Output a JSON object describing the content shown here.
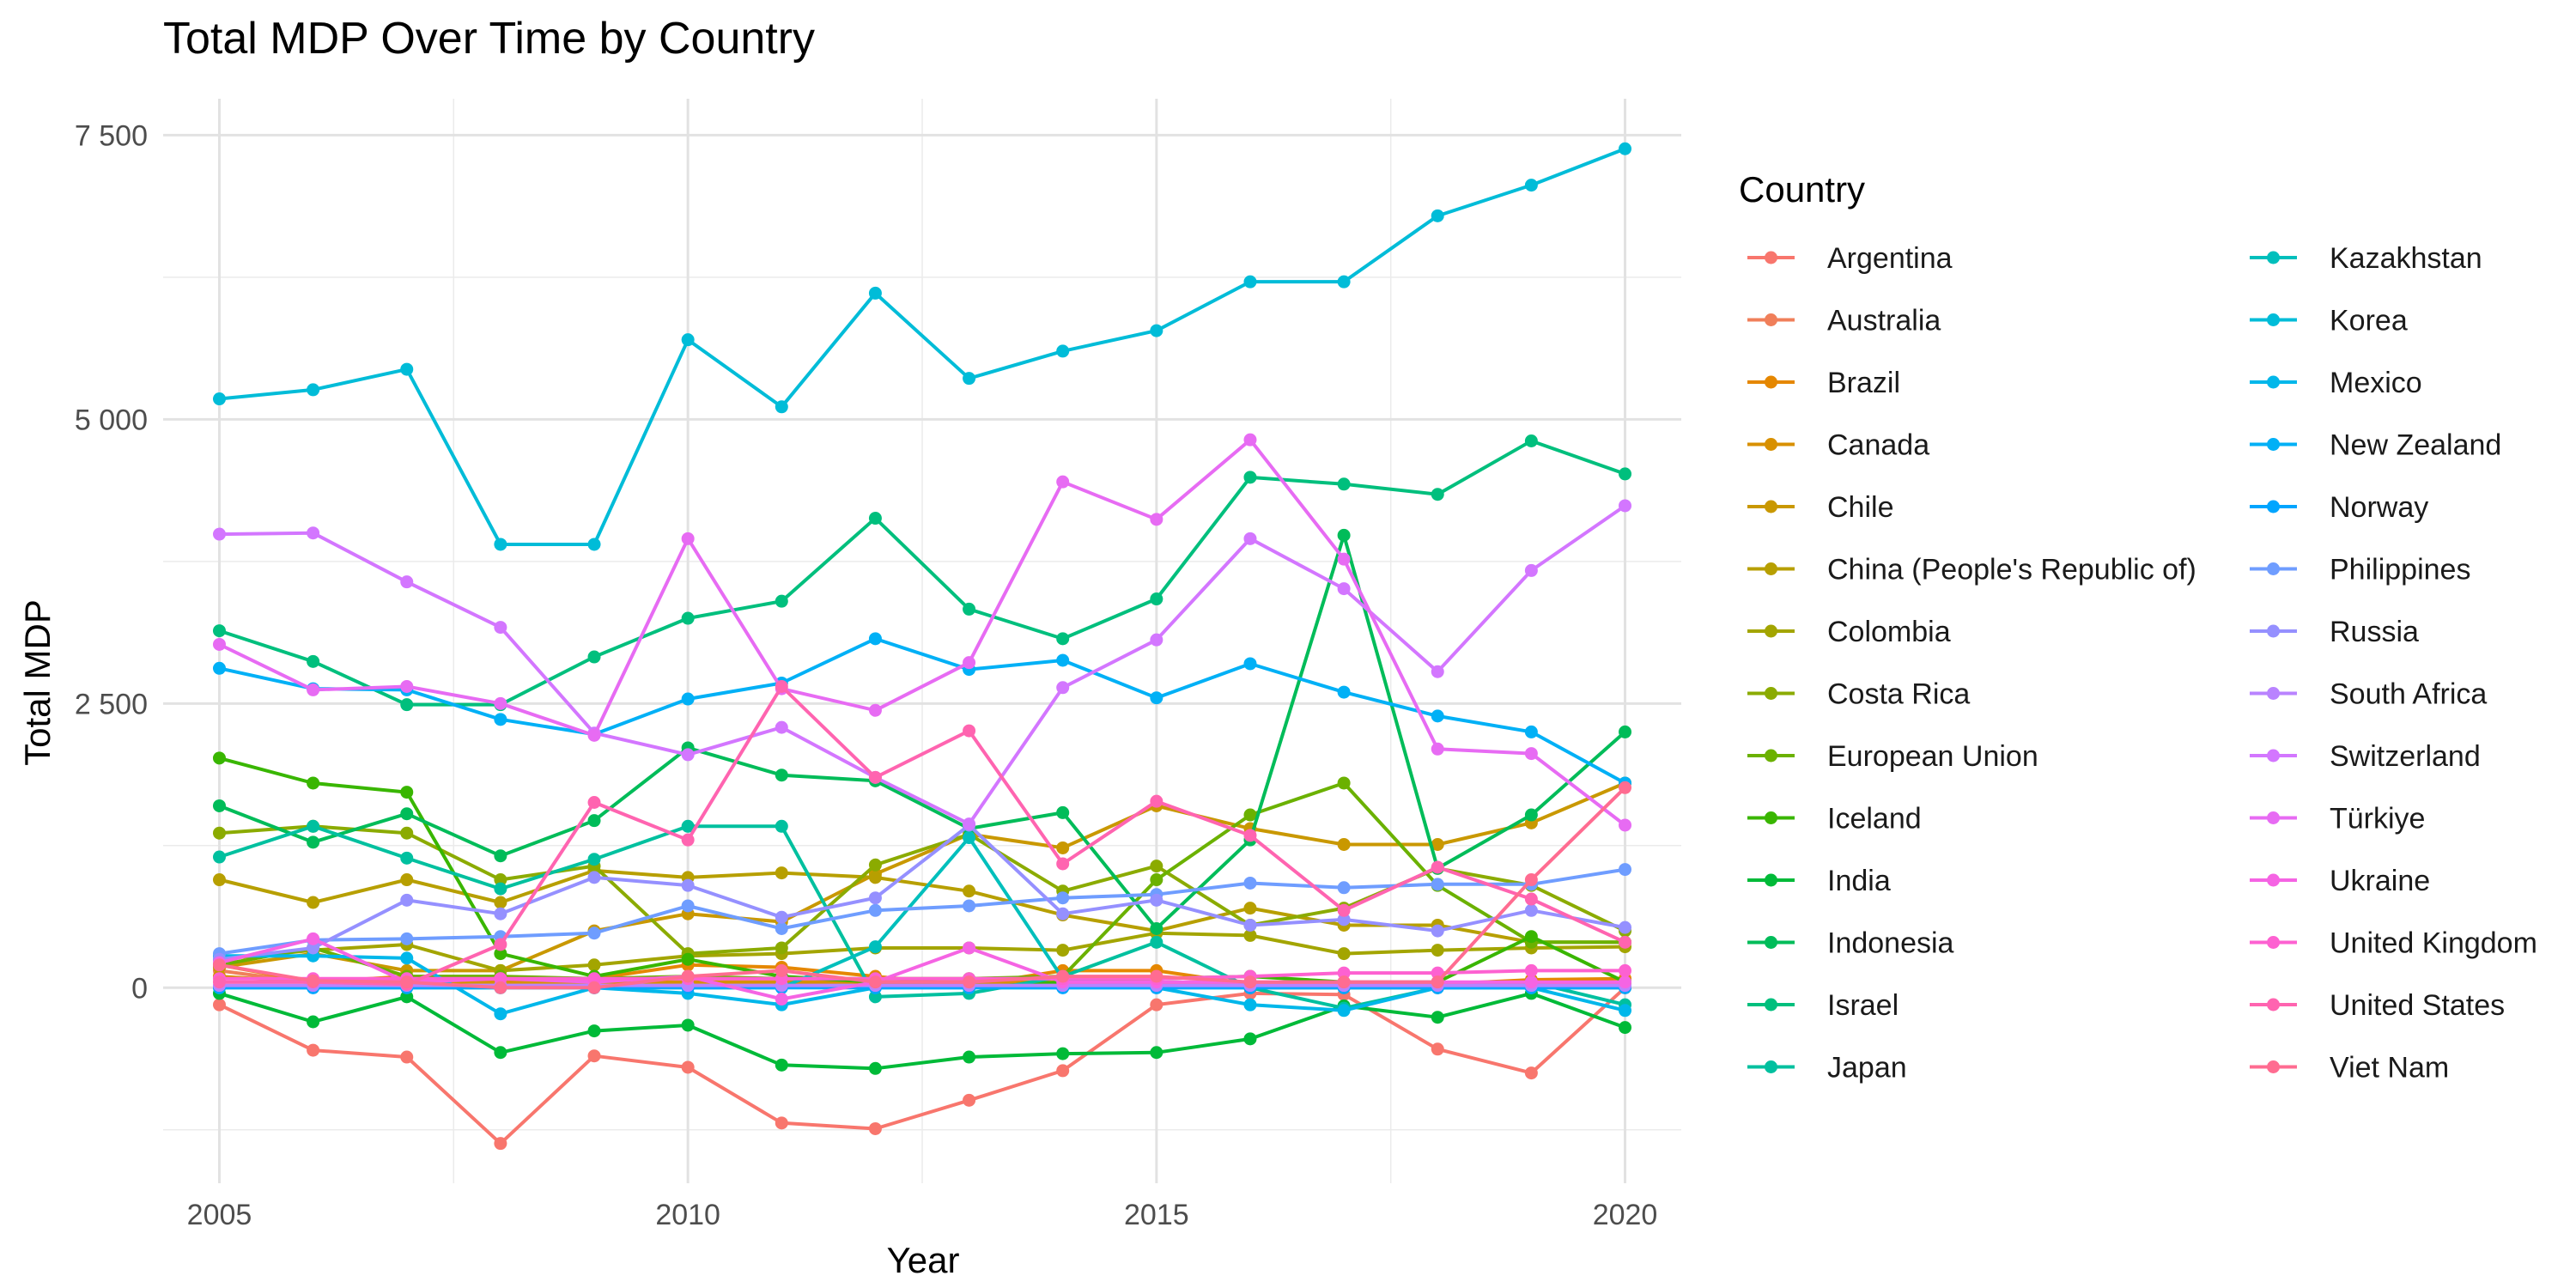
{
  "chart_data": {
    "type": "line",
    "title": "Total MDP Over Time by Country",
    "xlabel": "Year",
    "ylabel": "Total MDP",
    "xlim": [
      2004.4,
      2020.6
    ],
    "ylim": [
      -1720,
      7820
    ],
    "x_ticks": [
      2005,
      2010,
      2015,
      2020
    ],
    "y_ticks": [
      0,
      2500,
      5000,
      7500
    ],
    "y_tick_labels": [
      "0",
      "2 500",
      "5 000",
      "7 500"
    ],
    "grid": true,
    "legend": {
      "title": "Country",
      "position": "right",
      "columns": 2
    },
    "x": [
      2005,
      2006,
      2007,
      2008,
      2009,
      2010,
      2011,
      2012,
      2013,
      2014,
      2015,
      2016,
      2017,
      2018,
      2019,
      2020
    ],
    "series": [
      {
        "name": "Argentina",
        "color": "#F8766D",
        "values": [
          -150,
          -550,
          -610,
          -1370,
          -600,
          -700,
          -1190,
          -1240,
          -990,
          -730,
          -150,
          -50,
          -60,
          -540,
          -750,
          0
        ]
      },
      {
        "name": "Australia",
        "color": "#F07F5A",
        "values": [
          150,
          40,
          50,
          50,
          50,
          50,
          50,
          30,
          30,
          30,
          50,
          0,
          0,
          0,
          0,
          0
        ]
      },
      {
        "name": "Brazil",
        "color": "#E58700",
        "values": [
          200,
          50,
          100,
          60,
          80,
          200,
          180,
          100,
          20,
          150,
          150,
          30,
          40,
          30,
          70,
          80
        ]
      },
      {
        "name": "Canada",
        "color": "#D89000",
        "values": [
          100,
          50,
          50,
          50,
          50,
          50,
          50,
          50,
          50,
          50,
          50,
          30,
          30,
          30,
          30,
          30
        ]
      },
      {
        "name": "Chile",
        "color": "#C99800",
        "values": [
          180,
          300,
          150,
          150,
          500,
          650,
          580,
          1000,
          1350,
          1230,
          1600,
          1400,
          1260,
          1260,
          1450,
          1800
        ]
      },
      {
        "name": "China (People's Republic of)",
        "color": "#B79F00",
        "values": [
          950,
          750,
          950,
          750,
          1030,
          970,
          1010,
          970,
          850,
          640,
          500,
          700,
          550,
          550,
          400,
          400
        ]
      },
      {
        "name": "Colombia",
        "color": "#A3A500",
        "values": [
          250,
          330,
          380,
          150,
          200,
          280,
          300,
          350,
          350,
          330,
          480,
          460,
          300,
          330,
          350,
          360
        ]
      },
      {
        "name": "Costa Rica",
        "color": "#8BAB00",
        "values": [
          1360,
          1420,
          1360,
          950,
          1070,
          300,
          350,
          1080,
          1350,
          850,
          1070,
          550,
          700,
          1050,
          900,
          500
        ]
      },
      {
        "name": "European Union",
        "color": "#6BB100",
        "values": [
          200,
          350,
          100,
          100,
          80,
          100,
          80,
          80,
          80,
          100,
          950,
          1520,
          1800,
          900,
          400,
          400
        ]
      },
      {
        "name": "Iceland",
        "color": "#39B600",
        "values": [
          2020,
          1800,
          1720,
          300,
          100,
          250,
          100,
          50,
          0,
          50,
          80,
          100,
          50,
          50,
          450,
          50
        ]
      },
      {
        "name": "India",
        "color": "#00BA38",
        "values": [
          -50,
          -300,
          -80,
          -570,
          -380,
          -330,
          -680,
          -710,
          -610,
          -580,
          -570,
          -450,
          -160,
          -260,
          -50,
          -350
        ]
      },
      {
        "name": "Indonesia",
        "color": "#00BC59",
        "values": [
          1600,
          1280,
          1530,
          1160,
          1470,
          2110,
          1870,
          1820,
          1400,
          1540,
          520,
          1300,
          3980,
          1050,
          1520,
          2250
        ]
      },
      {
        "name": "Israel",
        "color": "#00BF7D",
        "values": [
          3140,
          2870,
          2490,
          2490,
          2910,
          3250,
          3400,
          4130,
          3330,
          3070,
          3420,
          4490,
          4430,
          4340,
          4810,
          4520
        ]
      },
      {
        "name": "Japan",
        "color": "#00C09F",
        "values": [
          1150,
          1420,
          1140,
          870,
          1130,
          1420,
          1420,
          -80,
          -50,
          100,
          400,
          0,
          -180,
          0,
          50,
          -150
        ]
      },
      {
        "name": "Kazakhstan",
        "color": "#00BFBC",
        "values": [
          0,
          0,
          0,
          0,
          0,
          0,
          0,
          360,
          1320,
          80,
          0,
          0,
          0,
          0,
          0,
          0
        ]
      },
      {
        "name": "Korea",
        "color": "#00BCD8",
        "values": [
          5180,
          5260,
          5440,
          3900,
          3900,
          5700,
          5110,
          6110,
          5360,
          5600,
          5780,
          6210,
          6210,
          6790,
          7060,
          7380
        ]
      },
      {
        "name": "Mexico",
        "color": "#00B7EA",
        "values": [
          280,
          280,
          260,
          -230,
          0,
          -50,
          -150,
          0,
          0,
          0,
          0,
          -150,
          -200,
          0,
          0,
          -200
        ]
      },
      {
        "name": "New Zealand",
        "color": "#00B0F6",
        "values": [
          2810,
          2630,
          2620,
          2360,
          2230,
          2540,
          2680,
          3070,
          2800,
          2880,
          2550,
          2850,
          2600,
          2390,
          2250,
          1800
        ]
      },
      {
        "name": "Norway",
        "color": "#00A5FF",
        "values": [
          0,
          0,
          0,
          0,
          0,
          0,
          0,
          0,
          0,
          0,
          0,
          0,
          0,
          0,
          0,
          0
        ]
      },
      {
        "name": "Philippines",
        "color": "#6F9DFF",
        "values": [
          300,
          420,
          430,
          450,
          480,
          720,
          520,
          680,
          720,
          790,
          820,
          920,
          880,
          910,
          910,
          1040
        ]
      },
      {
        "name": "Russia",
        "color": "#9590FF",
        "values": [
          250,
          350,
          770,
          650,
          970,
          900,
          620,
          790,
          1430,
          650,
          770,
          550,
          600,
          500,
          680,
          530
        ]
      },
      {
        "name": "South Africa",
        "color": "#B983FF",
        "values": [
          20,
          20,
          20,
          20,
          20,
          20,
          20,
          20,
          20,
          20,
          20,
          20,
          20,
          20,
          20,
          20
        ]
      },
      {
        "name": "Switzerland",
        "color": "#D376FF",
        "values": [
          3990,
          4000,
          3570,
          3170,
          2240,
          2050,
          2290,
          1850,
          1440,
          2640,
          3060,
          3950,
          3510,
          2780,
          3670,
          4240
        ]
      },
      {
        "name": "Türkiye",
        "color": "#E76BF3",
        "values": [
          3020,
          2620,
          2650,
          2500,
          2220,
          3950,
          2630,
          2440,
          2860,
          4450,
          4120,
          4820,
          3770,
          2100,
          2060,
          1430
        ]
      },
      {
        "name": "Ukraine",
        "color": "#F564E3",
        "values": [
          220,
          430,
          50,
          80,
          50,
          100,
          -100,
          50,
          350,
          50,
          50,
          50,
          50,
          50,
          50,
          50
        ]
      },
      {
        "name": "United Kingdom",
        "color": "#FD61D1",
        "values": [
          80,
          80,
          80,
          80,
          80,
          80,
          80,
          80,
          80,
          80,
          80,
          100,
          130,
          130,
          150,
          150
        ]
      },
      {
        "name": "United States",
        "color": "#FF64B0",
        "values": [
          50,
          50,
          30,
          380,
          1630,
          1300,
          2650,
          1850,
          2260,
          1090,
          1640,
          1340,
          680,
          1060,
          780,
          400
        ]
      },
      {
        "name": "Viet Nam",
        "color": "#FF6C91",
        "values": [
          200,
          60,
          50,
          0,
          0,
          100,
          150,
          50,
          50,
          100,
          100,
          50,
          50,
          50,
          950,
          1760
        ]
      }
    ]
  }
}
